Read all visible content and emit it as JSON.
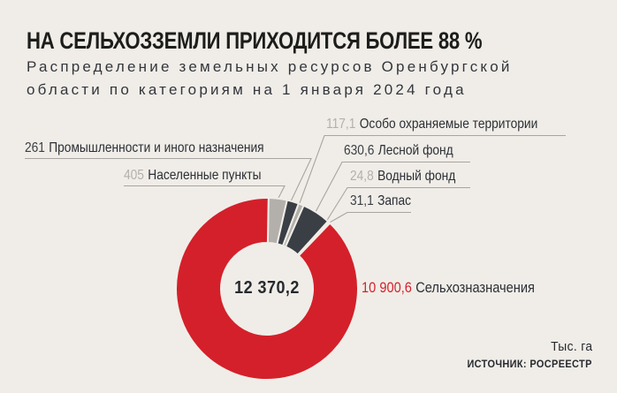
{
  "header": {
    "title": "НА СЕЛЬХОЗЗЕМЛИ ПРИХОДИТСЯ БОЛЕЕ 88 %",
    "subtitle_line1": "Распределение земельных ресурсов Оренбургской",
    "subtitle_line2": "области по категориям на 1 января 2024 года"
  },
  "chart_data": {
    "type": "pie",
    "subtype": "donut",
    "title": "Распределение земельных ресурсов Оренбургской области по категориям на 1 января 2024 года",
    "unit": "Тыс. га",
    "total_value": 12370.2,
    "total_display": "12 370,2",
    "start_angle_deg": 1,
    "donut": {
      "outer_radius": 103,
      "inner_radius": 52
    },
    "colors": {
      "red": "#d4202a",
      "dark": "#3a3e45",
      "gray": "#b3afaa",
      "background": "#f0ede8",
      "leader_line": "#a8a5a0"
    },
    "segments": [
      {
        "label": "Населенные пункты",
        "value": 405,
        "display": "405",
        "color": "#b3afaa"
      },
      {
        "label": "Промышленности и иного назначения",
        "value": 261,
        "display": "261",
        "color": "#3a3e45"
      },
      {
        "label": "Особо охраняемые территории",
        "value": 117.1,
        "display": "117,1",
        "color": "#b3afaa"
      },
      {
        "label": "Лесной фонд",
        "value": 630.6,
        "display": "630,6",
        "color": "#3a3e45"
      },
      {
        "label": "Водный фонд",
        "value": 24.8,
        "display": "24,8",
        "color": "#b3afaa"
      },
      {
        "label": "Запас",
        "value": 31.1,
        "display": "31,1",
        "color": "#3a3e45"
      },
      {
        "label": "Сельхозназначения",
        "value": 10900.6,
        "display": "10 900,6",
        "color": "#d4202a"
      }
    ]
  },
  "footer": {
    "unit_label": "Тыс. га",
    "source": "ИСТОЧНИК: РОСРЕЕСТР"
  }
}
